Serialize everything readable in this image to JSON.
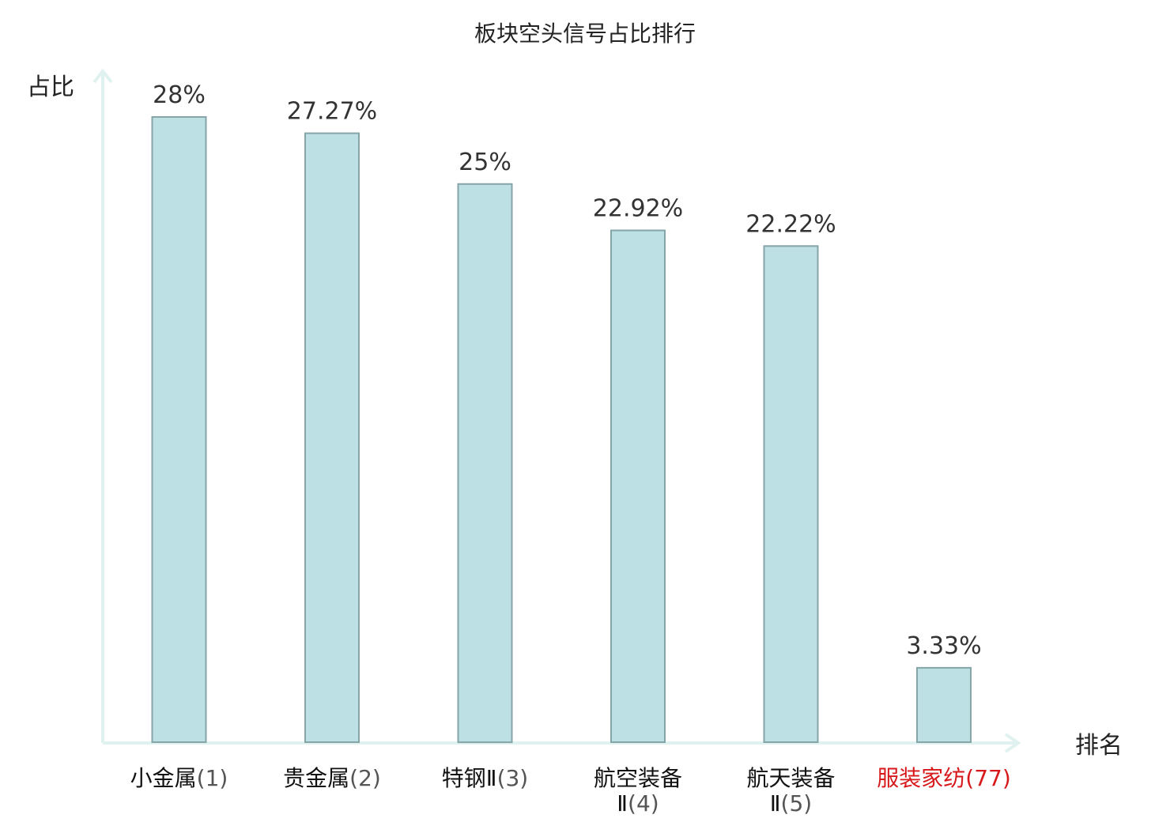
{
  "chart_data": {
    "type": "bar",
    "title": "板块空头信号占比排行",
    "ylabel": "占比",
    "xlabel": "排名",
    "categories": [
      {
        "name": "小金属",
        "rank": "(1)",
        "highlight": false
      },
      {
        "name": "贵金属",
        "rank": "(2)",
        "highlight": false
      },
      {
        "name": "特钢Ⅱ",
        "rank": "(3)",
        "highlight": false
      },
      {
        "name": "航空装备",
        "name2": "Ⅱ",
        "rank": "(4)",
        "highlight": false
      },
      {
        "name": "航天装备",
        "name2": "Ⅱ",
        "rank": "(5)",
        "highlight": false
      },
      {
        "name": "服装家纺",
        "rank": "(77)",
        "highlight": true
      }
    ],
    "values": [
      28,
      27.27,
      25,
      22.92,
      22.22,
      3.33
    ],
    "value_labels": [
      "28%",
      "27.27%",
      "25%",
      "22.92%",
      "22.22%",
      "3.33%"
    ],
    "ylim": [
      0,
      28
    ],
    "grid": false,
    "colors": {
      "bar_fill": "#bce0e3",
      "bar_stroke": "#85a5a8",
      "axis": "#dff2ef",
      "highlight_text": "#d7191c"
    }
  }
}
